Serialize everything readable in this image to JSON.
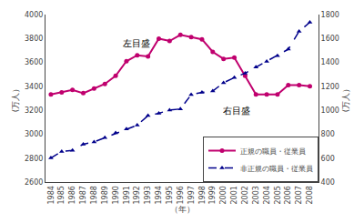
{
  "chart_data": {
    "type": "line",
    "x": [
      1984,
      1985,
      1986,
      1987,
      1988,
      1989,
      1990,
      1991,
      1992,
      1993,
      1994,
      1995,
      1996,
      1997,
      1998,
      1999,
      2000,
      2001,
      2002,
      2003,
      2004,
      2005,
      2006,
      2007,
      2008
    ],
    "x_label": "（年）",
    "y_label": "(万人）",
    "y2_label": "(万人）",
    "xlim": [
      1983.5,
      2008.8
    ],
    "xticks": [
      1984,
      1985,
      1986,
      1987,
      1988,
      1989,
      1990,
      1991,
      1992,
      1993,
      1994,
      1995,
      1996,
      1997,
      1998,
      1999,
      2000,
      2001,
      2002,
      2003,
      2004,
      2005,
      2006,
      2007,
      2008
    ],
    "ylim": [
      2600,
      4000
    ],
    "yticks": [
      2600,
      2800,
      3000,
      3200,
      3400,
      3600,
      3800,
      4000
    ],
    "y2lim": [
      400,
      1800
    ],
    "y2ticks": [
      400,
      600,
      800,
      1000,
      1200,
      1400,
      1600,
      1800
    ],
    "grid": false,
    "legend": "lower right",
    "series": [
      {
        "name": "正規の職員・従業員",
        "color": "#c0006e",
        "marker": "circle",
        "line_style": "solid",
        "values": [
          3333,
          3350,
          3370,
          3343,
          3381,
          3420,
          3488,
          3610,
          3660,
          3650,
          3799,
          3779,
          3830,
          3812,
          3793,
          3688,
          3630,
          3640,
          3489,
          3333,
          3333,
          3333,
          3411,
          3410,
          3400
        ]
      },
      {
        "name": "非正規の職員・従業員",
        "color": "#00008b",
        "marker": "triangle",
        "line_style": "dashed",
        "axis": "y2",
        "values": [
          601,
          655,
          665,
          716,
          735,
          770,
          811,
          843,
          876,
          955,
          975,
          1001,
          1011,
          1130,
          1150,
          1160,
          1230,
          1273,
          1310,
          1360,
          1409,
          1455,
          1510,
          1660,
          1735
        ]
      }
    ],
    "annotations": [
      {
        "text": "左目盛",
        "x": 1990.5,
        "y": 3760
      },
      {
        "text": "右目盛",
        "x": 1999.8,
        "y": 3200
      }
    ]
  }
}
